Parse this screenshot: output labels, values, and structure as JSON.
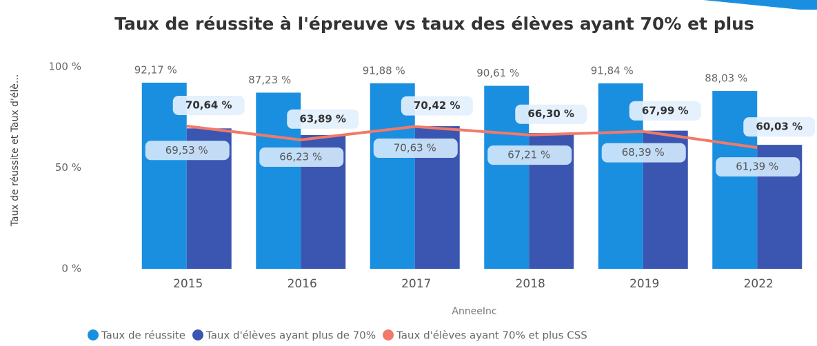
{
  "chart_data": {
    "type": "bar_line",
    "title": "Taux de réussite à l'épreuve vs taux des élèves ayant 70% et plus",
    "y_label": "Taux de réussite et Taux d'élè...",
    "x_label": "AnneeInc",
    "categories": [
      "2015",
      "2016",
      "2017",
      "2018",
      "2019",
      "2022"
    ],
    "ylim": [
      0,
      100
    ],
    "yticks": [
      {
        "value": 0,
        "label": "0 %"
      },
      {
        "value": 50,
        "label": "50 %"
      },
      {
        "value": 100,
        "label": "100 %"
      }
    ],
    "series": [
      {
        "name": "Taux de réussite",
        "color": "#1a8fe0",
        "kind": "bar",
        "values": [
          92.17,
          87.23,
          91.88,
          90.61,
          91.84,
          88.03
        ],
        "value_labels": [
          "92,17 %",
          "87,23 %",
          "91,88 %",
          "90,61 %",
          "91,84 %",
          "88,03 %"
        ]
      },
      {
        "name": "Taux d'élèves ayant plus de 70%",
        "color": "#3a56b0",
        "kind": "bar",
        "values": [
          69.53,
          66.23,
          70.63,
          67.21,
          68.39,
          61.39
        ],
        "value_labels": [
          "69,53 %",
          "66,23 %",
          "70,63 %",
          "67,21 %",
          "68,39 %",
          "61,39 %"
        ]
      },
      {
        "name": "Taux d'élèves ayant 70% et plus CSS",
        "color": "#f07a6a",
        "kind": "line",
        "values": [
          70.64,
          63.89,
          70.42,
          66.3,
          67.99,
          60.03
        ],
        "value_labels": [
          "70,64 %",
          "63,89 %",
          "70,42 %",
          "66,30 %",
          "67,99 %",
          "60,03 %"
        ]
      }
    ]
  }
}
